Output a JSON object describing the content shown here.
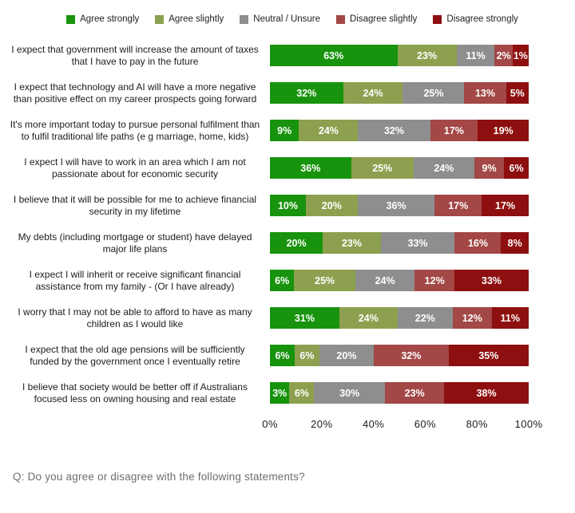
{
  "legend": {
    "items": [
      {
        "label": "Agree strongly",
        "color": "#18930d"
      },
      {
        "label": "Agree slightly",
        "color": "#8da04f"
      },
      {
        "label": "Neutral / Unsure",
        "color": "#8e8e8e"
      },
      {
        "label": "Disagree slightly",
        "color": "#a34747"
      },
      {
        "label": "Disagree strongly",
        "color": "#8e0f0f"
      }
    ]
  },
  "chart_data": {
    "type": "bar",
    "stacked": true,
    "orientation": "horizontal",
    "categories": [
      "I expect that government will increase the amount of taxes that I have to pay in the future",
      "I expect that technology and AI will have a more negative than positive effect on my career prospects going forward",
      "It's more important today to pursue personal fulfilment than to fulfil traditional life paths (e g  marriage, home, kids)",
      "I expect I will have to work in an area which I am not passionate about for economic security",
      "I believe that it will be possible for me to achieve financial security in my lifetime",
      "My debts (including mortgage or student) have delayed major life plans",
      "I expect I will inherit or receive significant financial assistance from my family - (Or I have already)",
      "I worry that I may not be able to afford to have as many children as I would like",
      "I expect that the old age pensions will be sufficiently funded by the government once I eventually retire",
      "I believe that society would be better off if Australians focused less on owning housing and real estate"
    ],
    "series": [
      {
        "name": "Agree strongly",
        "values": [
          63,
          32,
          9,
          36,
          10,
          20,
          6,
          31,
          6,
          3
        ]
      },
      {
        "name": "Agree slightly",
        "values": [
          23,
          24,
          24,
          25,
          20,
          23,
          25,
          24,
          6,
          6
        ]
      },
      {
        "name": "Neutral / Unsure",
        "values": [
          11,
          25,
          32,
          24,
          36,
          33,
          24,
          22,
          20,
          30
        ]
      },
      {
        "name": "Disagree slightly",
        "values": [
          2,
          13,
          17,
          9,
          17,
          16,
          12,
          12,
          32,
          23
        ]
      },
      {
        "name": "Disagree strongly",
        "values": [
          1,
          5,
          19,
          6,
          17,
          8,
          33,
          11,
          35,
          38
        ]
      }
    ],
    "x_ticks": [
      "0%",
      "20%",
      "40%",
      "60%",
      "80%",
      "100%"
    ],
    "xlim": [
      0,
      100
    ],
    "value_suffix": "%",
    "legend_position": "top",
    "title": ""
  },
  "footer": {
    "question": "Q: Do you agree or disagree with the following statements?"
  }
}
